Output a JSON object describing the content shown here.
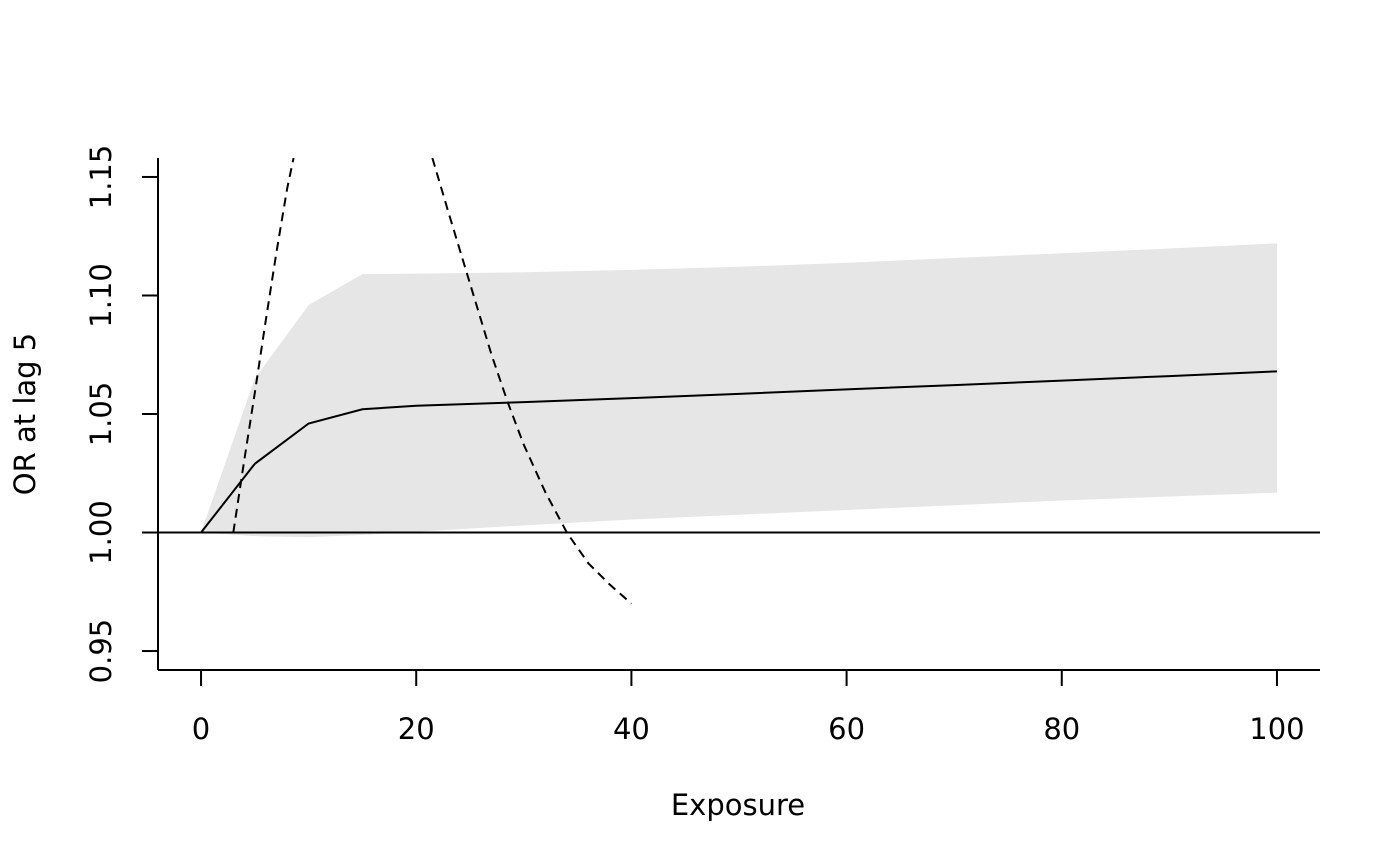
{
  "chart_data": {
    "type": "line",
    "xlabel": "Exposure",
    "ylabel": "OR at lag 5",
    "xlim": [
      -4,
      104
    ],
    "ylim": [
      0.942,
      1.158
    ],
    "x_ticks": [
      0,
      20,
      40,
      60,
      80,
      100
    ],
    "y_ticks": [
      0.95,
      1.0,
      1.05,
      1.1,
      1.15
    ],
    "x_tick_labels": [
      "0",
      "20",
      "40",
      "60",
      "80",
      "100"
    ],
    "y_tick_labels": [
      "0.95",
      "1.00",
      "1.05",
      "1.10",
      "1.15"
    ],
    "reference_line": 1.0,
    "grid": false,
    "band": {
      "x": [
        0,
        5,
        10,
        15,
        20,
        30,
        40,
        50,
        60,
        70,
        80,
        90,
        100
      ],
      "lower": [
        1.0,
        0.9985,
        0.998,
        0.999,
        1.0003,
        1.003,
        1.0055,
        1.0075,
        1.0095,
        1.0115,
        1.0135,
        1.0152,
        1.0168
      ],
      "upper": [
        1.0,
        1.065,
        1.096,
        1.109,
        1.1092,
        1.1098,
        1.1108,
        1.1121,
        1.1138,
        1.1158,
        1.1178,
        1.1198,
        1.122
      ],
      "color": "#e6e6e6"
    },
    "series": [
      {
        "style": "solid",
        "color": "#000000",
        "x": [
          0,
          5,
          10,
          15,
          20,
          30,
          40,
          50,
          60,
          70,
          80,
          90,
          100
        ],
        "y": [
          1.0,
          1.029,
          1.046,
          1.052,
          1.0535,
          1.055,
          1.0567,
          1.0585,
          1.0604,
          1.0622,
          1.0641,
          1.066,
          1.068
        ]
      },
      {
        "style": "dashed",
        "color": "#000000",
        "x": [
          3,
          4,
          5,
          6,
          7,
          8,
          8.6
        ],
        "y": [
          1.0,
          1.03,
          1.059,
          1.089,
          1.118,
          1.145,
          1.158
        ]
      },
      {
        "style": "dashed",
        "color": "#000000",
        "x": [
          21.5,
          23,
          25,
          27,
          28.5,
          30,
          32,
          34,
          36,
          38,
          40
        ],
        "y": [
          1.158,
          1.135,
          1.105,
          1.075,
          1.055,
          1.037,
          1.017,
          1.0,
          0.987,
          0.978,
          0.97
        ]
      }
    ]
  }
}
